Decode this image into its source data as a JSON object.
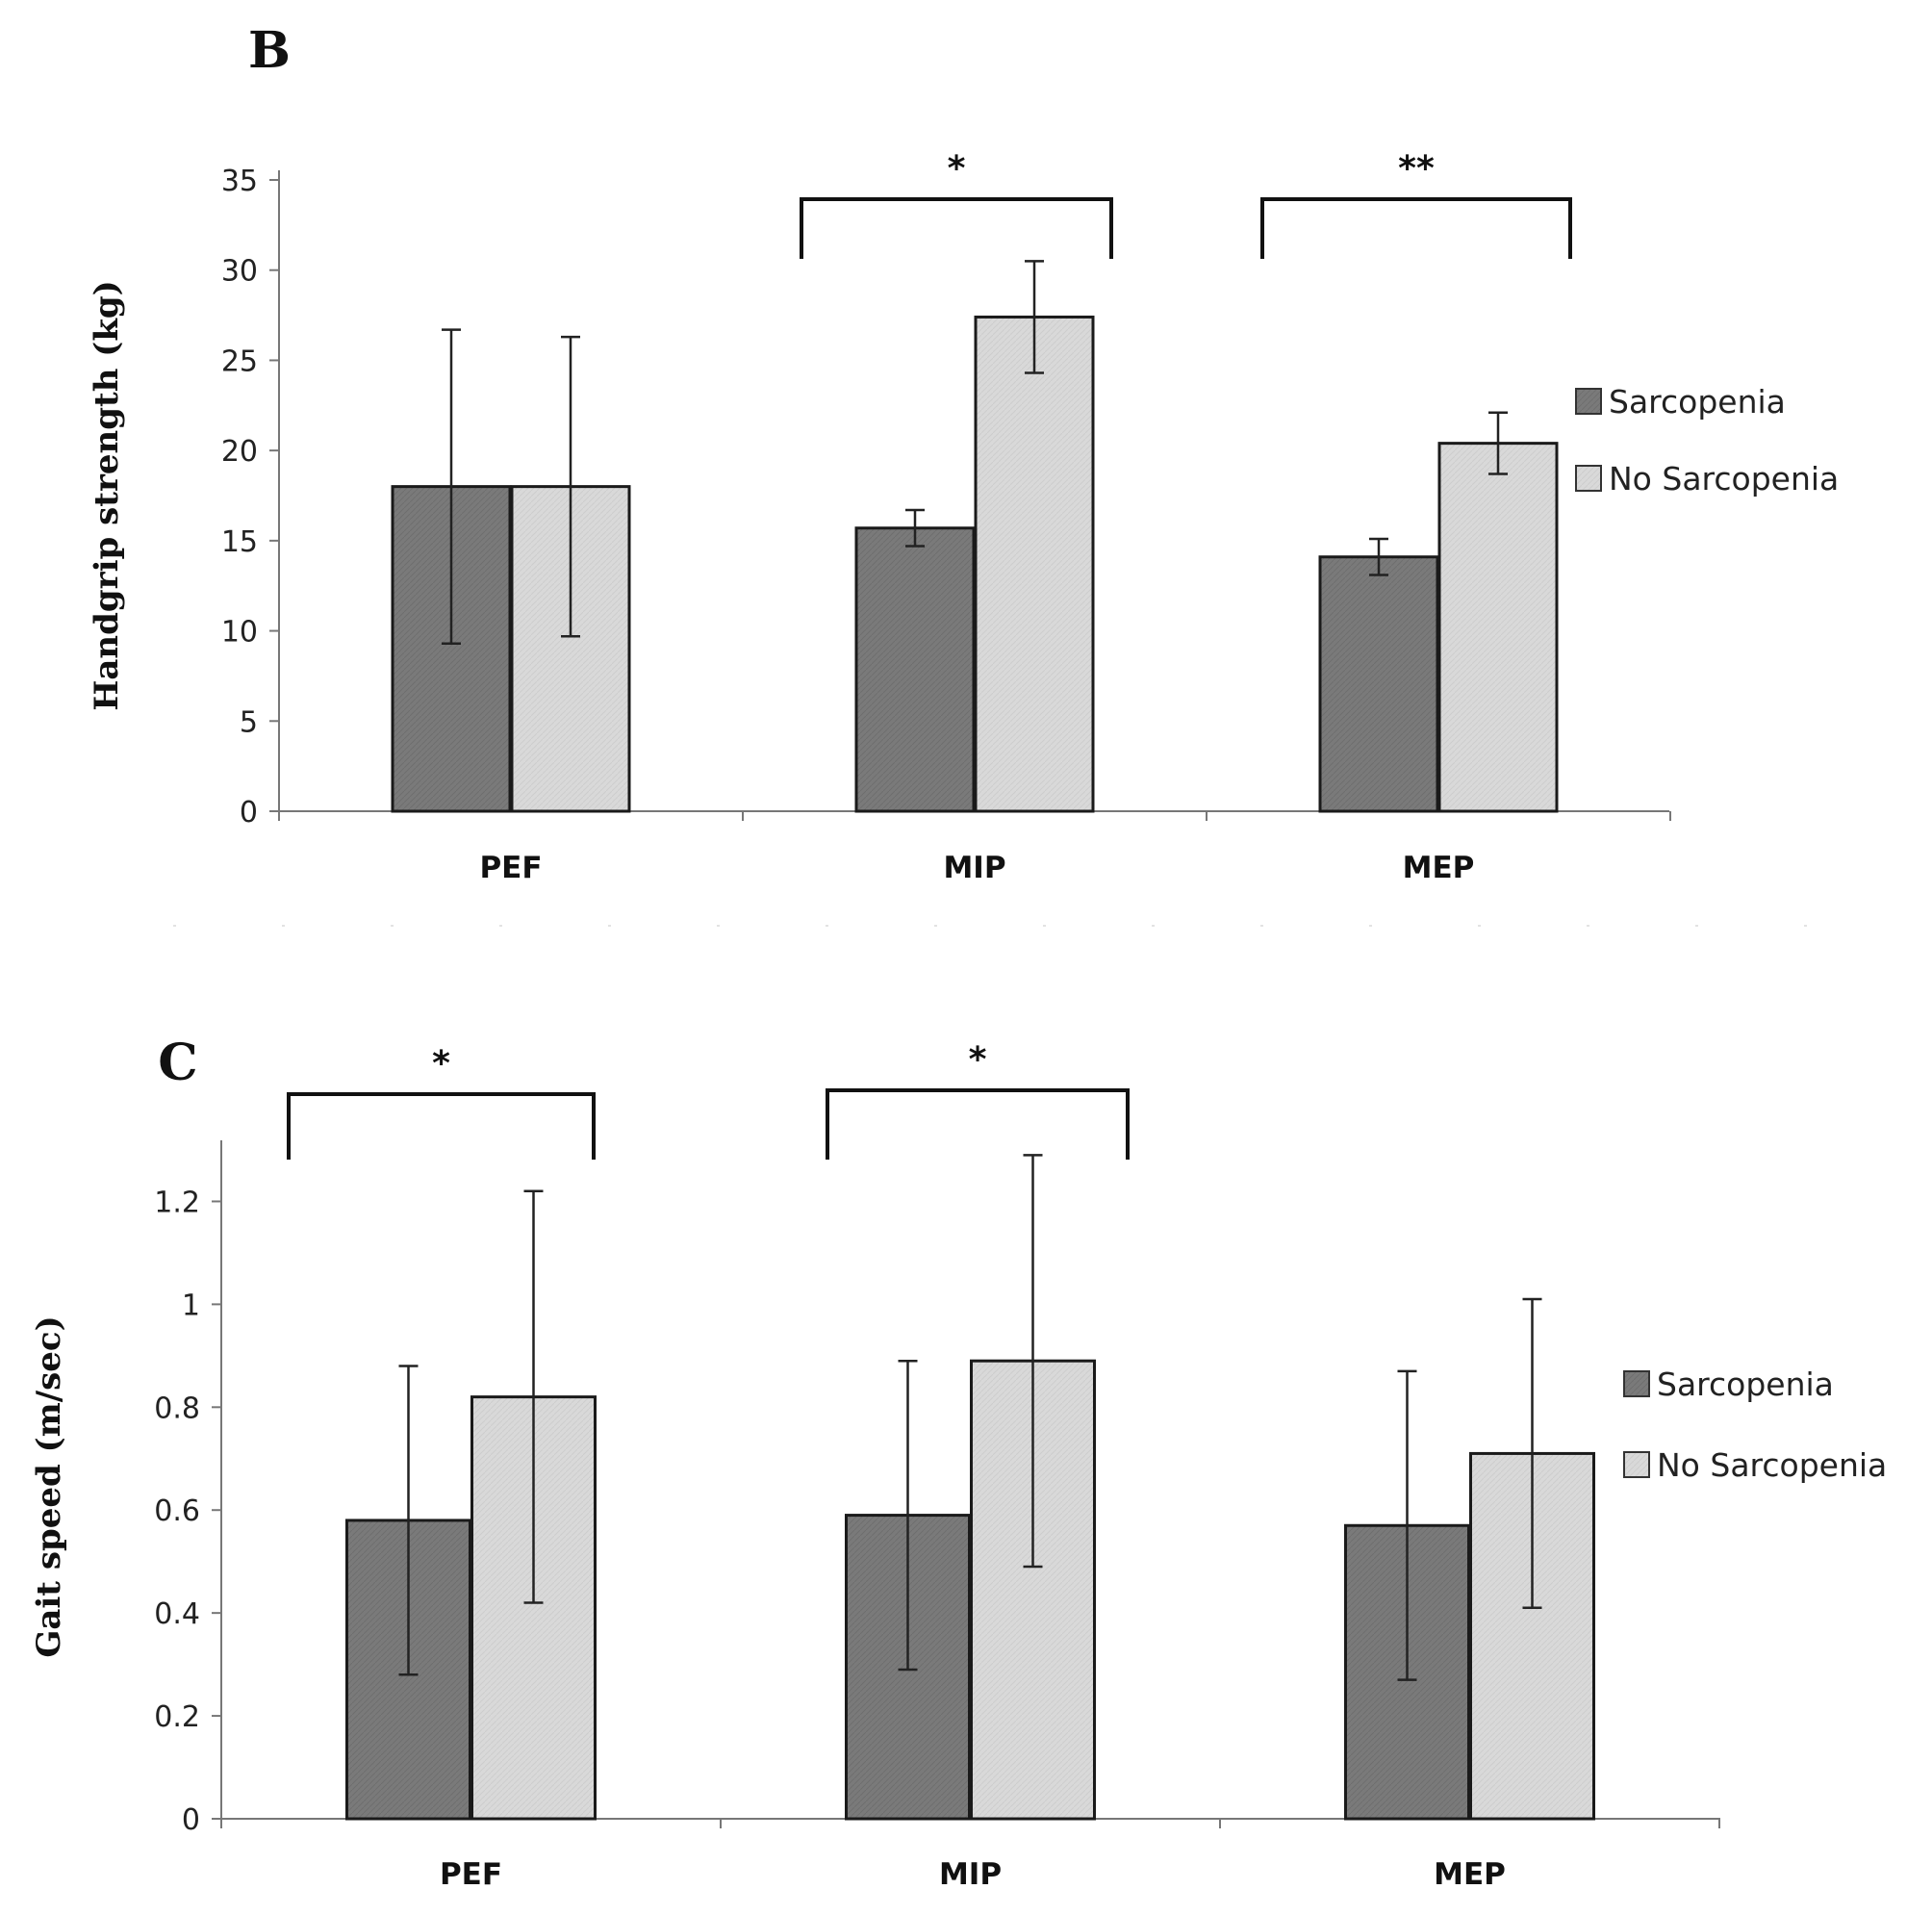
{
  "chart_data": [
    {
      "panel": "B",
      "type": "bar",
      "ylabel": "Handgrip strength (kg)",
      "xlabel": "",
      "ylim": [
        0,
        35
      ],
      "yticks": [
        0,
        5,
        10,
        15,
        20,
        25,
        30,
        35
      ],
      "categories": [
        "PEF",
        "MIP",
        "MEP"
      ],
      "series": [
        {
          "name": "Sarcopenia",
          "color": "#7a7a7a",
          "values": [
            18.0,
            15.7,
            14.1
          ],
          "errors": [
            8.7,
            1.0,
            1.0
          ]
        },
        {
          "name": "No Sarcopenia",
          "color": "#d8d8d8",
          "values": [
            18.0,
            27.4,
            20.4
          ],
          "errors": [
            8.3,
            3.1,
            1.7
          ]
        }
      ],
      "significance": [
        {
          "category": "MIP",
          "label": "*"
        },
        {
          "category": "MEP",
          "label": "**"
        }
      ],
      "legend_position": "right"
    },
    {
      "panel": "C",
      "type": "bar",
      "ylabel": "Gait speed (m/sec)",
      "xlabel": "",
      "ylim": [
        0,
        1.3
      ],
      "yticks": [
        "0",
        "0.2",
        "0.4",
        "0.6",
        "0.8",
        "1",
        "1.2"
      ],
      "categories": [
        "PEF",
        "MIP",
        "MEP"
      ],
      "series": [
        {
          "name": "Sarcopenia",
          "color": "#7a7a7a",
          "values": [
            0.58,
            0.59,
            0.57
          ],
          "errors": [
            0.3,
            0.3,
            0.3
          ]
        },
        {
          "name": "No Sarcopenia",
          "color": "#d8d8d8",
          "values": [
            0.82,
            0.89,
            0.71
          ],
          "errors": [
            0.4,
            0.4,
            0.3
          ]
        }
      ],
      "significance": [
        {
          "category": "PEF",
          "label": "*"
        },
        {
          "category": "MIP",
          "label": "*"
        }
      ],
      "legend_position": "right"
    }
  ]
}
